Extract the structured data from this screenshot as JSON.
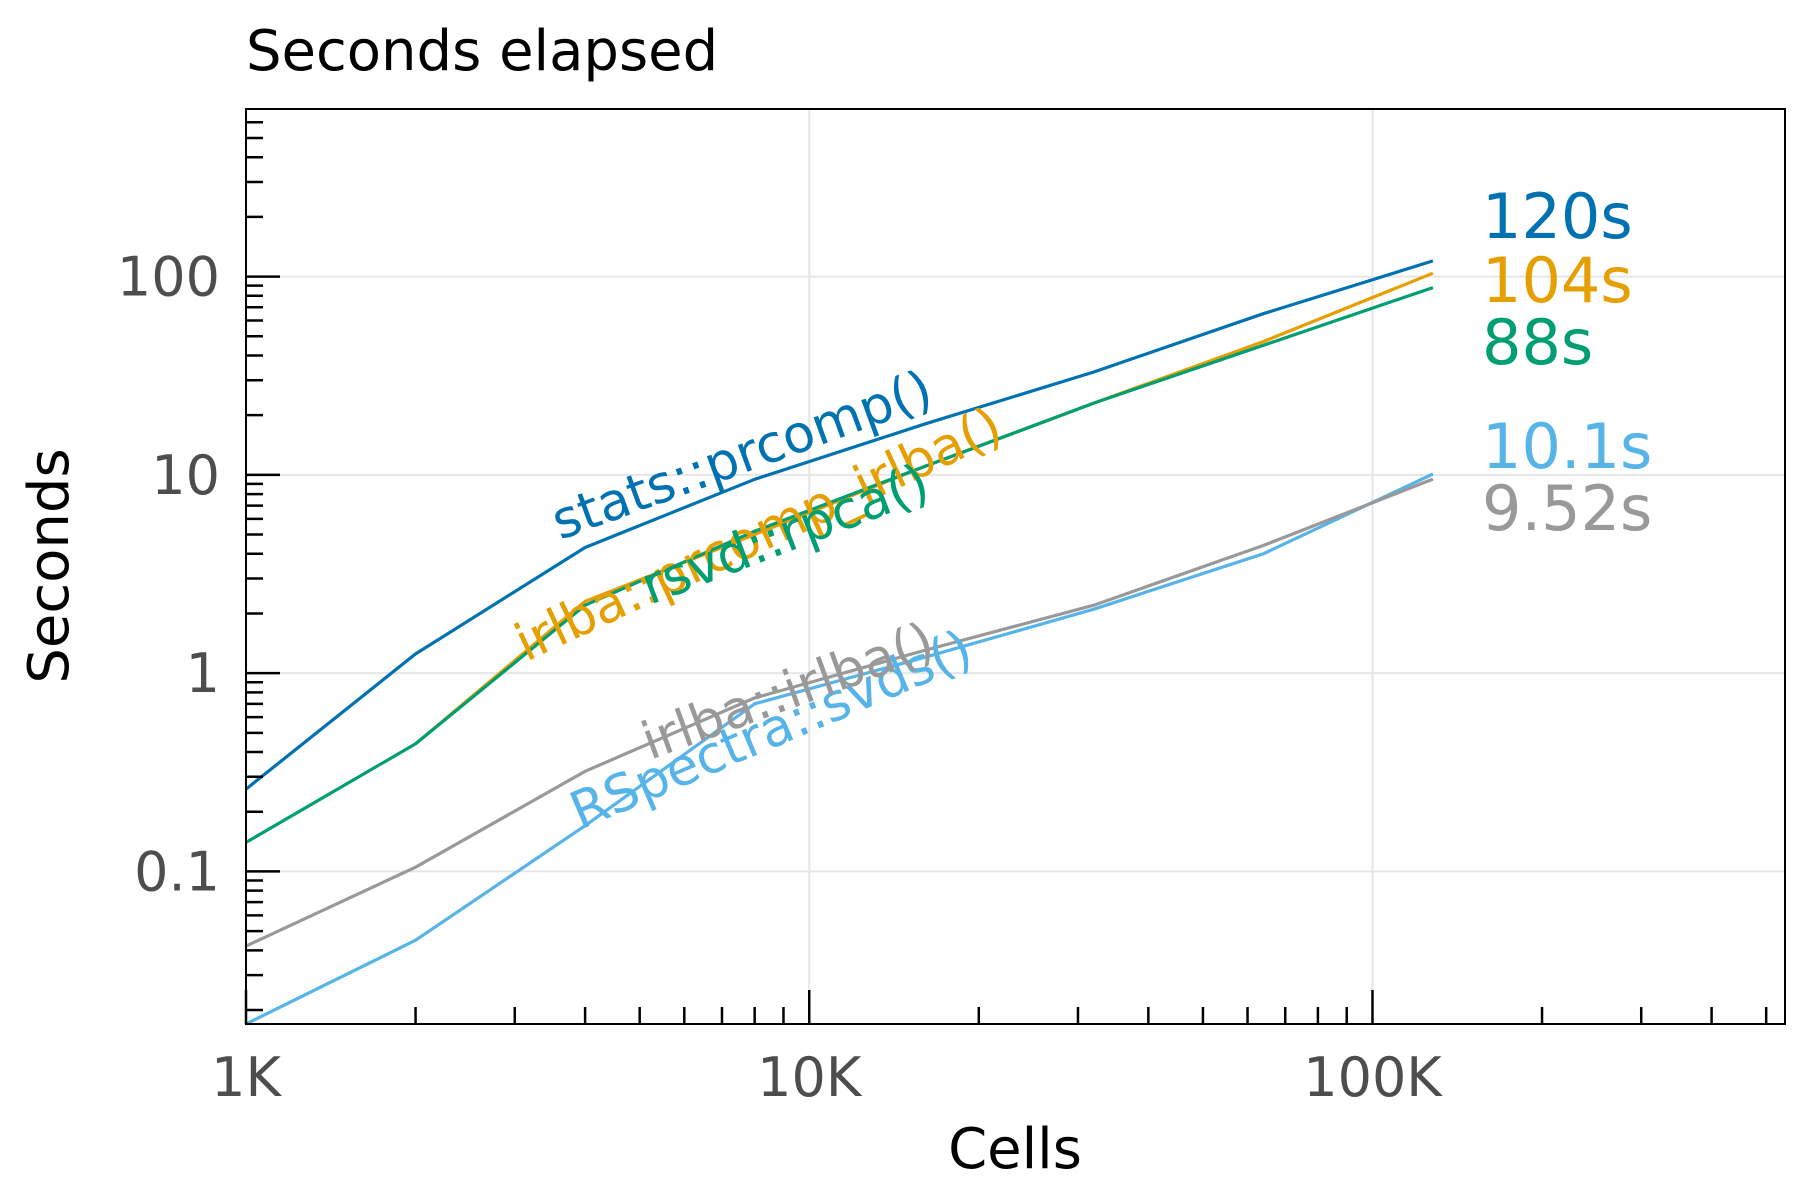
{
  "chart_data": {
    "type": "line",
    "title": "Seconds elapsed",
    "xlabel": "Cells",
    "ylabel": "Seconds",
    "x_scale": "log",
    "y_scale": "log",
    "xlim": [
      1000,
      540000
    ],
    "ylim": [
      0.017,
      700
    ],
    "grid": true,
    "legend": "none",
    "x_ticks": [
      {
        "value": 1000,
        "label": "1K"
      },
      {
        "value": 10000,
        "label": "10K"
      },
      {
        "value": 100000,
        "label": "100K"
      }
    ],
    "y_ticks": [
      {
        "value": 0.1,
        "label": "0.1"
      },
      {
        "value": 1,
        "label": "1"
      },
      {
        "value": 10,
        "label": "10"
      },
      {
        "value": 100,
        "label": "100"
      }
    ],
    "x": [
      1000,
      2000,
      4000,
      8000,
      16000,
      32000,
      64000,
      128000
    ],
    "series": [
      {
        "name": "stats::prcomp()",
        "color": "#0072B2",
        "values": [
          0.26,
          1.25,
          4.3,
          9.5,
          18,
          33,
          65,
          120
        ],
        "end_label": "120s"
      },
      {
        "name": "irlba::prcomp_irlba()",
        "color": "#E69F00",
        "values": [
          null,
          0.44,
          2.3,
          5.0,
          11,
          23,
          47,
          104
        ],
        "end_label": "104s"
      },
      {
        "name": "rsvd::rpca()",
        "color": "#009E73",
        "values": [
          0.14,
          0.44,
          2.2,
          5.2,
          11,
          23,
          45,
          88
        ],
        "end_label": "88s"
      },
      {
        "name": "RSpectra::svds()",
        "color": "#56B4E9",
        "values": [
          0.017,
          0.045,
          0.17,
          0.7,
          1.2,
          2.1,
          4.0,
          10.1
        ],
        "end_label": "10.1s"
      },
      {
        "name": "irlba::irlba()",
        "color": "#999999",
        "values": [
          0.042,
          0.105,
          0.32,
          0.75,
          1.3,
          2.2,
          4.4,
          9.52
        ],
        "end_label": "9.52s"
      }
    ]
  }
}
